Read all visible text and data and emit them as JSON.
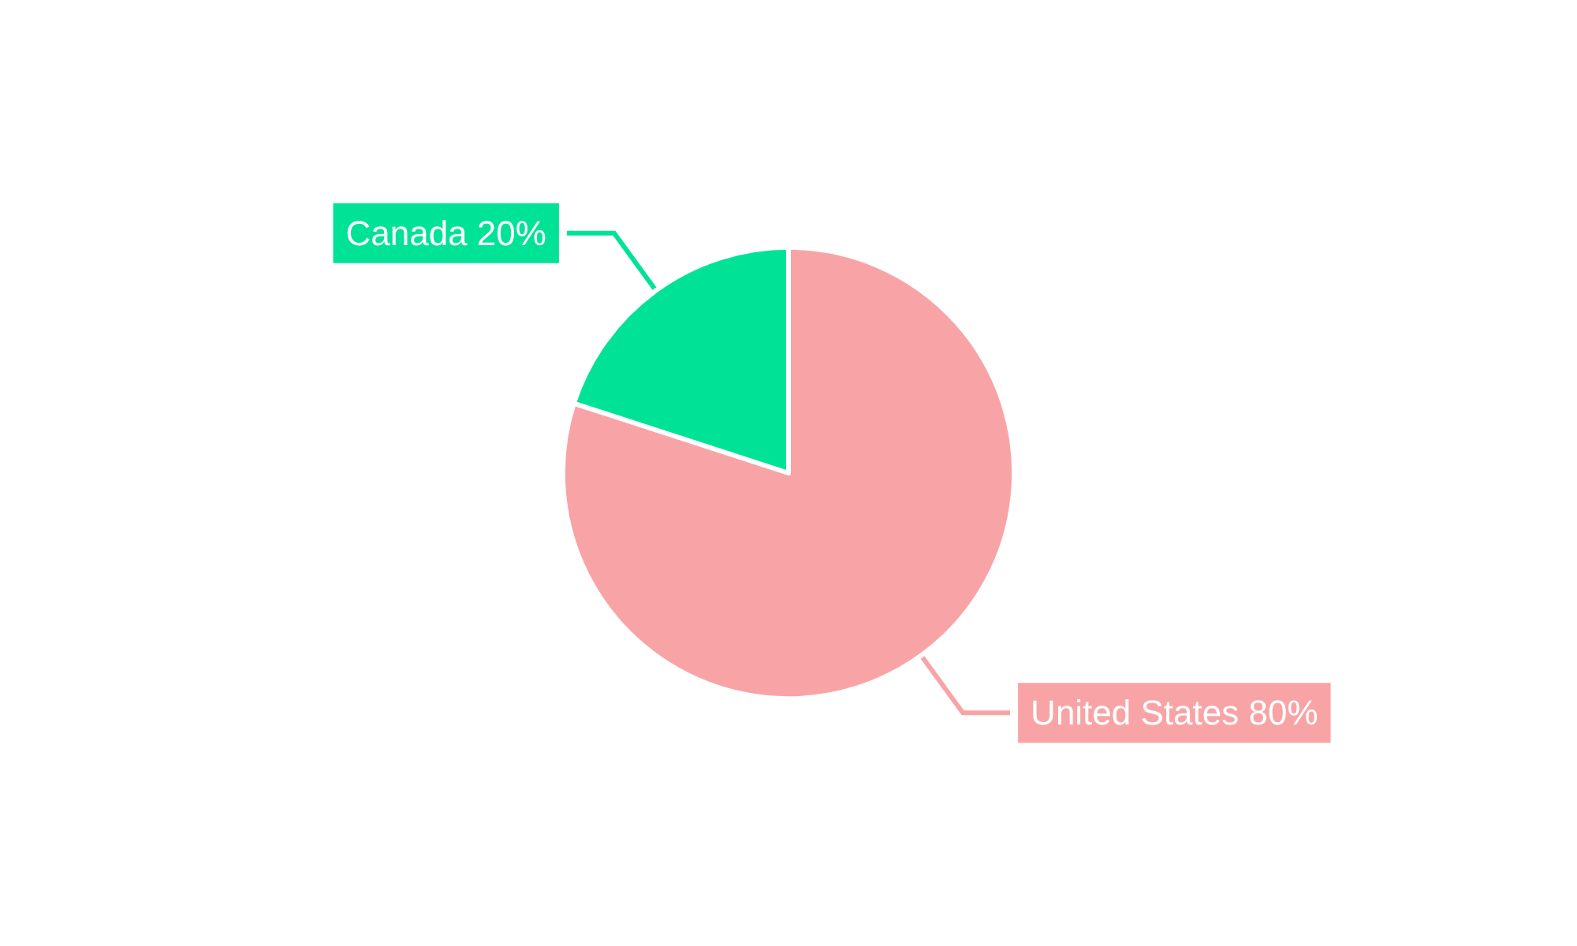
{
  "chart_data": {
    "type": "pie",
    "categories": [
      "United States",
      "Canada"
    ],
    "values": [
      80,
      20
    ],
    "colors": [
      "#f8a4a6",
      "#00e396"
    ],
    "value_labels": [
      "80%",
      "20%"
    ]
  }
}
